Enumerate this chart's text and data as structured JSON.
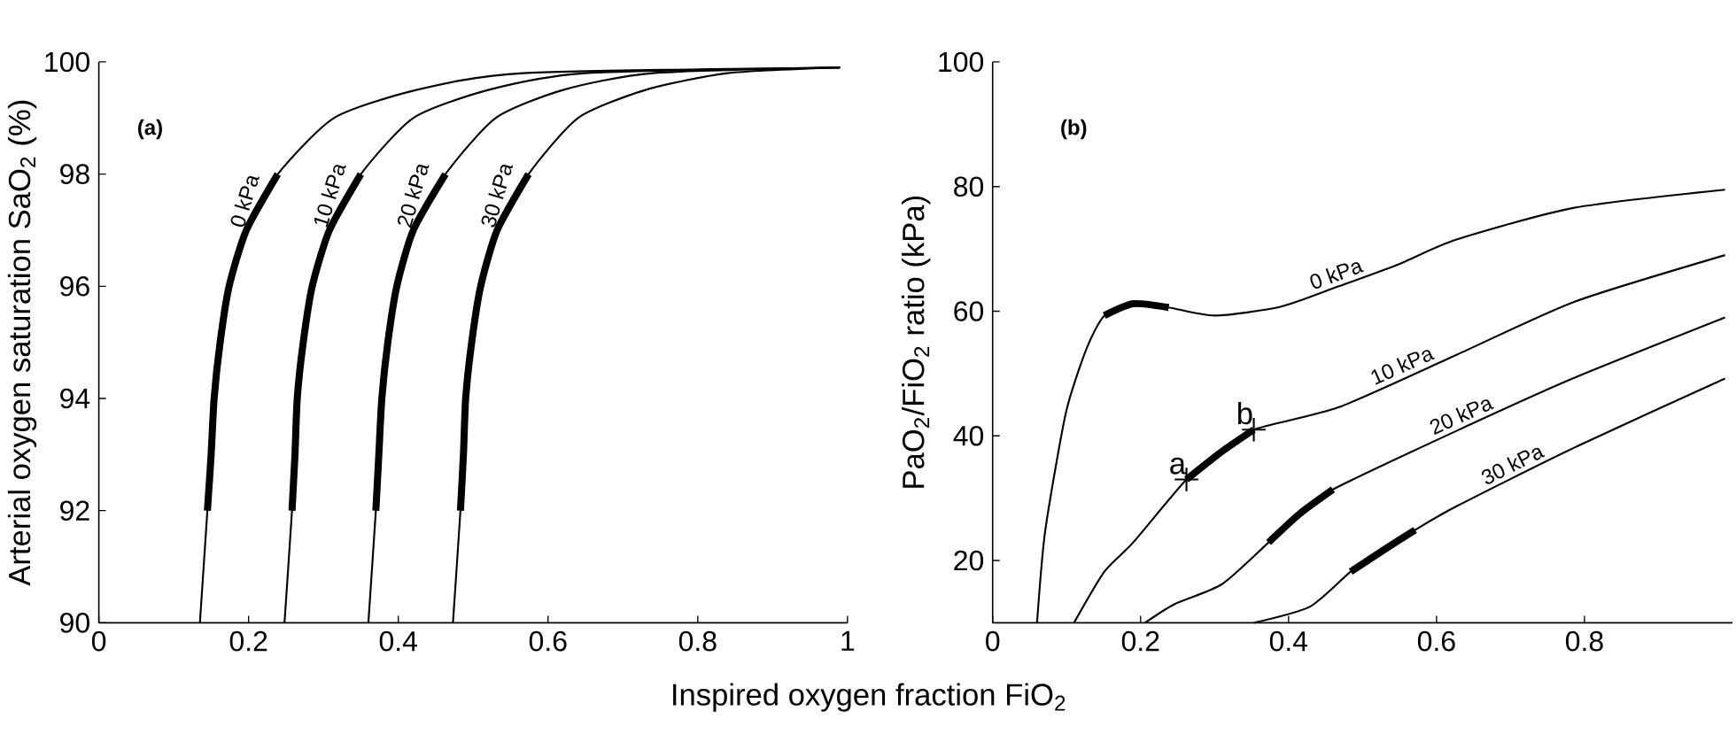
{
  "chart_data": [
    {
      "type": "line",
      "xlabel": "Inspired oxygen fraction FiO$_{2}$",
      "ylabel": "Arterial oxygen saturation SaO$_{2}$ (%)",
      "xlim": [
        0,
        1
      ],
      "ylim": [
        90,
        100
      ],
      "xticks": [
        0,
        0.2,
        0.4,
        0.6,
        0.8,
        1
      ],
      "yticks": [
        90,
        92,
        94,
        96,
        98,
        100
      ],
      "annotations": [
        "(a)"
      ],
      "series": [
        {
          "name": "0 kPa",
          "color": "#000000",
          "x": [
            0.135,
            0.145,
            0.15,
            0.154,
            0.162,
            0.174,
            0.197,
            0.239,
            0.314,
            0.424,
            0.567,
            0.99
          ],
          "values": [
            90,
            92,
            93,
            94,
            95,
            96,
            97,
            98,
            99,
            99.5,
            99.8,
            99.9
          ]
        },
        {
          "name": "10 kPa",
          "color": "#000000",
          "x": [
            0.248,
            0.258,
            0.262,
            0.265,
            0.273,
            0.285,
            0.308,
            0.35,
            0.42,
            0.52,
            0.65,
            0.99
          ],
          "values": [
            90,
            92,
            93,
            94,
            95,
            96,
            97,
            98,
            99,
            99.5,
            99.8,
            99.9
          ]
        },
        {
          "name": "20 kPa",
          "color": "#000000",
          "x": [
            0.36,
            0.37,
            0.374,
            0.378,
            0.386,
            0.398,
            0.42,
            0.463,
            0.53,
            0.62,
            0.74,
            0.99
          ],
          "values": [
            90,
            92,
            93,
            94,
            95,
            96,
            97,
            98,
            99,
            99.5,
            99.8,
            99.9
          ]
        },
        {
          "name": "30 kPa",
          "color": "#000000",
          "x": [
            0.473,
            0.483,
            0.487,
            0.49,
            0.498,
            0.51,
            0.532,
            0.574,
            0.64,
            0.73,
            0.84,
            0.99
          ],
          "values": [
            90,
            92,
            93,
            94,
            95,
            96,
            97,
            98,
            99,
            99.5,
            99.8,
            99.9
          ]
        },
        {
          "color": "#000000",
          "x": [
            0.145,
            0.15,
            0.154,
            0.162,
            0.174,
            0.197,
            0.239
          ],
          "values": [
            92,
            93,
            94,
            95,
            96,
            97,
            98
          ]
        },
        {
          "color": "#000000",
          "x": [
            0.258,
            0.262,
            0.265,
            0.273,
            0.285,
            0.308,
            0.35
          ],
          "values": [
            92,
            93,
            94,
            95,
            96,
            97,
            98
          ]
        },
        {
          "color": "#000000",
          "x": [
            0.37,
            0.374,
            0.378,
            0.386,
            0.398,
            0.42,
            0.463
          ],
          "values": [
            92,
            93,
            94,
            95,
            96,
            97,
            98
          ]
        },
        {
          "color": "#000000",
          "x": [
            0.483,
            0.487,
            0.49,
            0.498,
            0.51,
            0.532,
            0.574
          ],
          "values": [
            92,
            93,
            94,
            95,
            96,
            97,
            98
          ]
        }
      ]
    },
    {
      "type": "line",
      "ylabel": "PaO$_{2}$/FiO$_{2}$ ratio (kPa)",
      "xlim": [
        0,
        1
      ],
      "ylim": [
        10,
        100
      ],
      "xticks": [
        0,
        0.2,
        0.4,
        0.6,
        0.8
      ],
      "yticks": [
        20,
        40,
        60,
        80,
        100
      ],
      "annotations": [
        "(b)",
        {
          "text": "a",
          "x": 0.262,
          "y": 33
        },
        {
          "text": "b",
          "x": 0.353,
          "y": 41
        }
      ],
      "series": [
        {
          "name": "0 kPa",
          "color": "#000000",
          "x": [
            0.06,
            0.071,
            0.099,
            0.127,
            0.151,
            0.19,
            0.238,
            0.3,
            0.389,
            0.468,
            0.548,
            0.627,
            0.786,
            0.99
          ],
          "values": [
            10,
            24.7,
            43.7,
            54,
            59.3,
            61.2,
            60.6,
            59.3,
            60.7,
            64,
            67.5,
            71.5,
            76.6,
            79.5
          ]
        },
        {
          "name": "10 kPa",
          "color": "#000000",
          "x": [
            0.11,
            0.151,
            0.19,
            0.262,
            0.31,
            0.353,
            0.468,
            0.627,
            0.786,
            0.99
          ],
          "values": [
            10,
            18.2,
            22.9,
            33,
            37.5,
            41,
            44.6,
            53,
            61.5,
            69
          ]
        },
        {
          "name": "20 kPa",
          "color": "#000000",
          "x": [
            0.206,
            0.246,
            0.31,
            0.373,
            0.415,
            0.46,
            0.627,
            0.786,
            0.99
          ],
          "values": [
            10,
            13,
            16.2,
            22.9,
            27.5,
            31.4,
            40.8,
            49.3,
            59
          ]
        },
        {
          "name": "30 kPa",
          "color": "#000000",
          "x": [
            0.353,
            0.429,
            0.484,
            0.53,
            0.571,
            0.627,
            0.786,
            0.99
          ],
          "values": [
            10,
            12.6,
            18.2,
            21.8,
            24.9,
            28.7,
            38.1,
            49.2
          ]
        },
        {
          "color": "#000000",
          "x": [
            0.151,
            0.19,
            0.238
          ],
          "values": [
            59.3,
            61.2,
            60.6
          ]
        },
        {
          "color": "#000000",
          "x": [
            0.262,
            0.31,
            0.353
          ],
          "values": [
            33,
            37.5,
            41
          ]
        },
        {
          "color": "#000000",
          "x": [
            0.373,
            0.415,
            0.46
          ],
          "values": [
            22.9,
            27.5,
            31.4
          ]
        },
        {
          "color": "#000000",
          "x": [
            0.484,
            0.53,
            0.571
          ],
          "values": [
            18.2,
            21.8,
            24.9
          ]
        },
        {
          "type": "scatter",
          "marker": "cross",
          "color": "#000000",
          "x": [
            0.262,
            0.353
          ],
          "values": [
            33,
            41
          ]
        }
      ]
    }
  ]
}
